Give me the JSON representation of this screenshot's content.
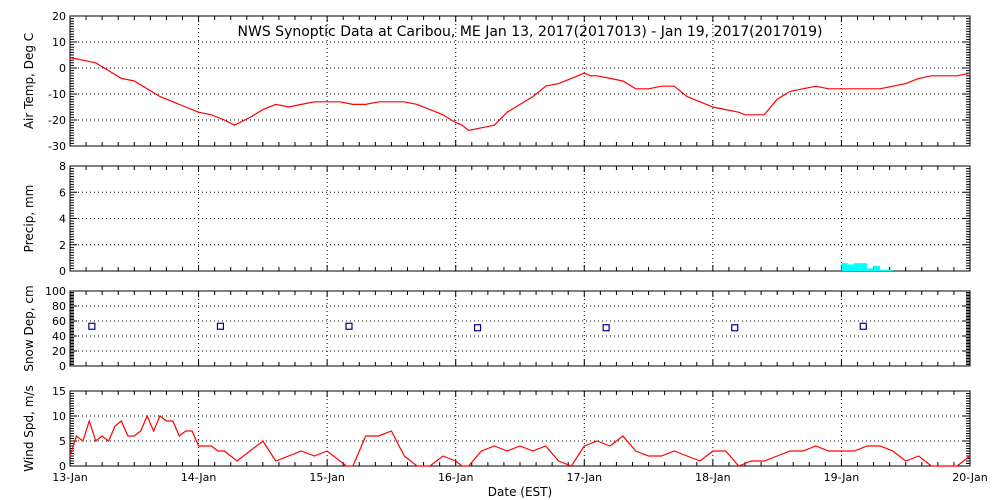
{
  "title": "NWS Synoptic Data at Caribou, ME   Jan 13, 2017(2017013) - Jan 19, 2017(2017019)",
  "x_axis": {
    "label": "Date (EST)",
    "tick_labels": [
      "13-Jan",
      "14-Jan",
      "15-Jan",
      "16-Jan",
      "17-Jan",
      "18-Jan",
      "19-Jan",
      "20-Jan"
    ],
    "range_days": [
      0,
      7
    ]
  },
  "colors": {
    "temp": "#ff0000",
    "precip": "#00ffff",
    "snow": "#00008b",
    "wind": "#ff0000",
    "grid": "#000000"
  },
  "chart_data": [
    {
      "type": "line",
      "ylabel": "Air Temp, Deg C",
      "ylim": [
        -30,
        20
      ],
      "yticks": [
        20,
        10,
        0,
        -10,
        -20,
        -30
      ],
      "grid": true,
      "series": [
        {
          "x": [
            0.0,
            0.1,
            0.2,
            0.3,
            0.4,
            0.5,
            0.6,
            0.7,
            0.8,
            0.9,
            1.0,
            1.1,
            1.2,
            1.28,
            1.4,
            1.5,
            1.6,
            1.7,
            1.8,
            1.9,
            2.0,
            2.1,
            2.2,
            2.3,
            2.4,
            2.5,
            2.6,
            2.7,
            2.8,
            2.9,
            3.0,
            3.05,
            3.1,
            3.2,
            3.3,
            3.4,
            3.5,
            3.6,
            3.7,
            3.8,
            3.9,
            4.0,
            4.05,
            4.1,
            4.2,
            4.3,
            4.4,
            4.5,
            4.6,
            4.7,
            4.8,
            4.9,
            5.0,
            5.1,
            5.2,
            5.25,
            5.3,
            5.4,
            5.5,
            5.6,
            5.7,
            5.8,
            5.9,
            6.0,
            6.1,
            6.2,
            6.3,
            6.4,
            6.5,
            6.6,
            6.7,
            6.8,
            6.9,
            7.0
          ],
          "y": [
            4,
            3,
            2,
            -1,
            -4,
            -5,
            -8,
            -11,
            -13,
            -15,
            -17,
            -18,
            -20,
            -22,
            -19,
            -16,
            -14,
            -15,
            -14,
            -13,
            -13,
            -13,
            -14,
            -14,
            -13,
            -13,
            -13,
            -14,
            -16,
            -18,
            -21,
            -22,
            -24,
            -23,
            -22,
            -17,
            -14,
            -11,
            -7,
            -6,
            -4,
            -2,
            -3,
            -3,
            -4,
            -5,
            -8,
            -8,
            -7,
            -7,
            -11,
            -13,
            -15,
            -16,
            -17,
            -18,
            -18,
            -18,
            -12,
            -9,
            -8,
            -7,
            -8,
            -8,
            -8,
            -8,
            -8,
            -7,
            -6,
            -4,
            -3,
            -3,
            -3,
            -2
          ]
        }
      ]
    },
    {
      "type": "bar",
      "ylabel": "Precip, mm",
      "ylim": [
        0,
        8
      ],
      "yticks": [
        8,
        6,
        4,
        2,
        0
      ],
      "grid": true,
      "series": [
        {
          "x": [
            6.0,
            6.05,
            6.1,
            6.15,
            6.2,
            6.25,
            6.3,
            6.35
          ],
          "y": [
            0.6,
            0.5,
            0.6,
            0.6,
            0.2,
            0.4,
            0.1,
            0.1
          ]
        }
      ]
    },
    {
      "type": "scatter",
      "ylabel": "Snow Dep, cm",
      "ylim": [
        0,
        100
      ],
      "yticks": [
        100,
        80,
        60,
        40,
        20,
        0
      ],
      "grid": true,
      "series": [
        {
          "x": [
            0.17,
            1.17,
            2.17,
            3.17,
            4.17,
            5.17,
            6.17
          ],
          "y": [
            53,
            53,
            53,
            51,
            51,
            51,
            53
          ]
        }
      ]
    },
    {
      "type": "line",
      "ylabel": "Wind Spd, m/s",
      "ylim": [
        0,
        15
      ],
      "yticks": [
        15,
        10,
        5,
        0
      ],
      "grid": true,
      "series": [
        {
          "x": [
            0.0,
            0.05,
            0.1,
            0.15,
            0.2,
            0.25,
            0.3,
            0.35,
            0.4,
            0.45,
            0.5,
            0.55,
            0.6,
            0.65,
            0.7,
            0.75,
            0.8,
            0.85,
            0.9,
            0.95,
            1.0,
            1.1,
            1.15,
            1.2,
            1.3,
            1.4,
            1.5,
            1.55,
            1.6,
            1.7,
            1.8,
            1.9,
            2.0,
            2.1,
            2.15,
            2.2,
            2.3,
            2.4,
            2.5,
            2.6,
            2.7,
            2.8,
            2.9,
            3.0,
            3.05,
            3.1,
            3.2,
            3.3,
            3.4,
            3.5,
            3.6,
            3.7,
            3.8,
            3.9,
            4.0,
            4.1,
            4.2,
            4.3,
            4.4,
            4.5,
            4.6,
            4.7,
            4.8,
            4.9,
            5.0,
            5.1,
            5.2,
            5.3,
            5.4,
            5.5,
            5.6,
            5.7,
            5.8,
            5.9,
            6.0,
            6.1,
            6.2,
            6.3,
            6.4,
            6.5,
            6.6,
            6.7,
            6.8,
            6.9,
            7.0
          ],
          "y": [
            2,
            6,
            5,
            9,
            5,
            6,
            5,
            8,
            9,
            6,
            6,
            7,
            10,
            7,
            10,
            9,
            9,
            6,
            7,
            7,
            4,
            4,
            3,
            3,
            1,
            3,
            5,
            3,
            1,
            2,
            3,
            2,
            3,
            1,
            0,
            0,
            6,
            6,
            7,
            2,
            0,
            0,
            2,
            1,
            0,
            0,
            3,
            4,
            3,
            4,
            3,
            4,
            1,
            0,
            4,
            5,
            4,
            6,
            3,
            2,
            2,
            3,
            2,
            1,
            3,
            3,
            0,
            1,
            1,
            2,
            3,
            3,
            4,
            3,
            3,
            3,
            4,
            4,
            3,
            1,
            2,
            0,
            0,
            0,
            2
          ]
        }
      ]
    }
  ]
}
